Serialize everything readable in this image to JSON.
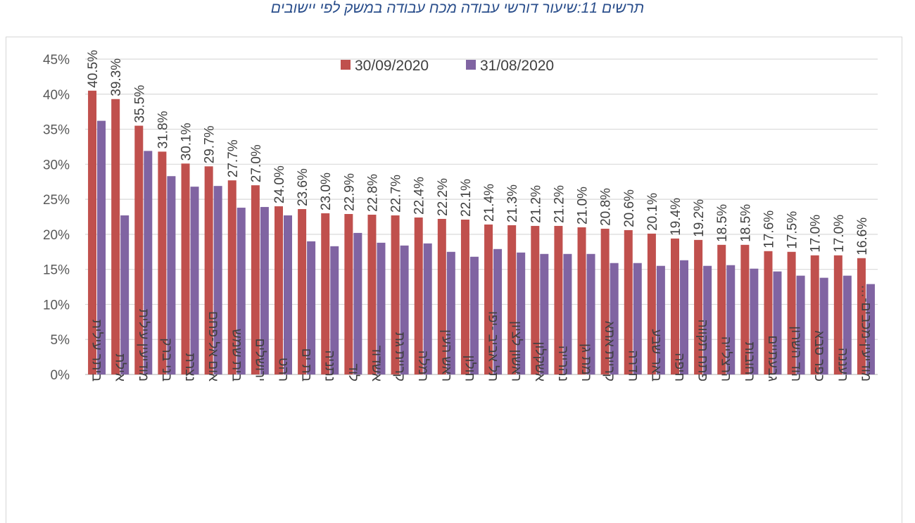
{
  "caption": "תרשים 11:שיעור דורשי עבודה מכח עבודה במשק לפי יישובים",
  "chart_data": {
    "type": "bar",
    "title": "תרשים 11:שיעור דורשי עבודה מכח עבודה במשק לפי יישובים",
    "xlabel": "",
    "ylabel": "",
    "ylim": [
      0,
      45
    ],
    "yticks": [
      "0%",
      "5%",
      "10%",
      "15%",
      "20%",
      "25%",
      "30%",
      "35%",
      "40%",
      "45%"
    ],
    "grid": true,
    "legend_position": "top-center",
    "categories": [
      "ביתר עילית",
      "אילת",
      "מודיעין עילית",
      "בני ברק",
      "נצרת",
      "אום אל-פחם",
      "בית שמש",
      "ירושלים",
      "רהט",
      "בת ים",
      "נתניה",
      "לוד",
      "אשדוד",
      "קריית גת",
      "רמלה",
      "ראש העין",
      "חולון",
      "תל אביב -יפו",
      "ראשון לציון",
      "אשקלון",
      "נהרייה",
      "רמת גן",
      "קריית אתא",
      "חדרה",
      "באר שבע",
      "חיפה",
      "פתח תקווה",
      "הרצלייה",
      "רחובות",
      "גבעתיים",
      "הוד השרון",
      "כפר סבא",
      "רעננה",
      "מודיעין-מכבים-…"
    ],
    "series": [
      {
        "name": "30/09/2020",
        "color": "#c0504d",
        "values": [
          40.5,
          39.3,
          35.5,
          31.8,
          30.1,
          29.7,
          27.7,
          27.0,
          24.0,
          23.6,
          23.0,
          22.9,
          22.8,
          22.7,
          22.4,
          22.2,
          22.1,
          21.4,
          21.3,
          21.2,
          21.2,
          21.0,
          20.8,
          20.6,
          20.1,
          19.4,
          19.2,
          18.5,
          18.5,
          17.6,
          17.5,
          17.0,
          17.0,
          16.6
        ],
        "labels": [
          "40.5%",
          "39.3%",
          "35.5%",
          "31.8%",
          "30.1%",
          "29.7%",
          "27.7%",
          "27.0%",
          "24.0%",
          "23.6%",
          "23.0%",
          "22.9%",
          "22.8%",
          "22.7%",
          "22.4%",
          "22.2%",
          "22.1%",
          "21.4%",
          "21.3%",
          "21.2%",
          "21.2%",
          "21.0%",
          "20.8%",
          "20.6%",
          "20.1%",
          "19.4%",
          "19.2%",
          "18.5%",
          "18.5%",
          "17.6%",
          "17.5%",
          "17.0%",
          "17.0%",
          "16.6%"
        ]
      },
      {
        "name": "31/08/2020",
        "color": "#8064a2",
        "values": [
          36.2,
          22.7,
          31.9,
          28.3,
          26.8,
          26.9,
          23.8,
          23.9,
          22.7,
          19.0,
          18.3,
          20.2,
          18.8,
          18.4,
          18.7,
          17.5,
          16.8,
          17.9,
          17.4,
          17.2,
          17.2,
          17.2,
          15.9,
          15.9,
          15.5,
          16.3,
          15.5,
          15.6,
          15.1,
          14.7,
          14.1,
          13.8,
          14.1,
          12.9
        ]
      }
    ]
  }
}
